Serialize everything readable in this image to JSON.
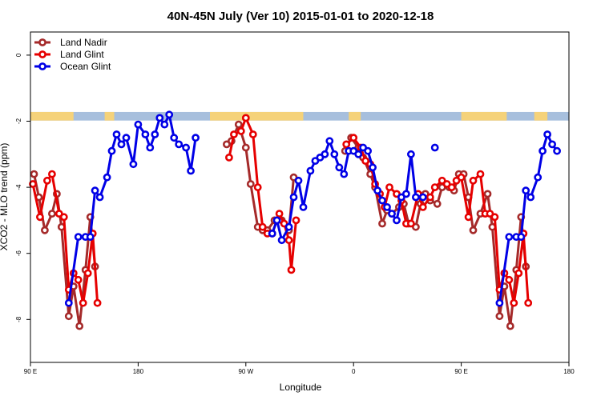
{
  "chart_data": {
    "type": "line",
    "title": "40N-45N July (Ver 10)   2015-01-01 to 2020-12-18",
    "xlabel": "Longitude",
    "ylabel": "XCO2 - MLO trend (ppm)",
    "x_tick_labels": [
      "90 E",
      "180",
      "90 W",
      "0",
      "90 E",
      "180"
    ],
    "y_tick_labels": [
      "0",
      "-2",
      "-4",
      "-6",
      "-8"
    ],
    "y_ticks": [
      0,
      -2,
      -4,
      -6,
      -8
    ],
    "xlim": [
      90,
      540
    ],
    "ylim": [
      -9.3,
      0.7
    ],
    "grid": false,
    "legend_position": "top-left",
    "land_band": {
      "y_range": [
        -1.72,
        -1.98
      ],
      "land_color": "#f5d27a",
      "ocean_color": "#a7bfdd",
      "land_segments": [
        [
          90,
          126
        ],
        [
          152,
          160
        ],
        [
          240,
          318
        ],
        [
          356,
          366
        ],
        [
          450,
          488
        ],
        [
          511,
          522
        ]
      ]
    },
    "series": [
      {
        "name": "Land Nadir",
        "color": "#a52a2a",
        "points": [
          [
            93,
            -3.6
          ],
          [
            97,
            -4.3
          ],
          [
            102,
            -5.3
          ],
          [
            108,
            -4.8
          ],
          [
            112,
            -4.2
          ],
          [
            116,
            -5.2
          ],
          [
            122,
            -7.9
          ],
          [
            126,
            -7.0
          ],
          [
            131,
            -8.2
          ],
          [
            136,
            -6.5
          ],
          [
            140,
            -4.9
          ],
          [
            144,
            -6.4
          ],
          null,
          [
            254,
            -2.7
          ],
          [
            258,
            -2.6
          ],
          [
            264,
            -2.1
          ],
          [
            270,
            -2.8
          ],
          [
            274,
            -3.9
          ],
          [
            280,
            -5.2
          ],
          [
            284,
            -5.3
          ],
          [
            288,
            -5.3
          ],
          [
            294,
            -5.0
          ],
          [
            300,
            -5.0
          ],
          [
            306,
            -5.3
          ],
          [
            310,
            -3.7
          ],
          null,
          [
            353,
            -2.9
          ],
          [
            358,
            -2.5
          ],
          [
            364,
            -2.8
          ],
          [
            368,
            -3.1
          ],
          [
            374,
            -3.6
          ],
          [
            378,
            -4.0
          ],
          [
            384,
            -5.1
          ],
          [
            388,
            -4.7
          ],
          [
            392,
            -4.8
          ],
          [
            398,
            -4.6
          ],
          [
            402,
            -4.5
          ],
          [
            406,
            -5.1
          ],
          [
            412,
            -5.2
          ],
          [
            416,
            -4.5
          ],
          [
            420,
            -4.2
          ],
          [
            424,
            -4.4
          ],
          [
            430,
            -4.5
          ],
          [
            434,
            -4.0
          ],
          [
            440,
            -4.0
          ],
          [
            444,
            -4.1
          ],
          [
            448,
            -3.6
          ],
          [
            452,
            -3.6
          ],
          [
            456,
            -4.3
          ],
          [
            460,
            -5.3
          ],
          [
            466,
            -4.8
          ],
          [
            472,
            -4.2
          ],
          [
            476,
            -5.2
          ],
          [
            482,
            -7.9
          ],
          [
            486,
            -7.0
          ],
          [
            491,
            -8.2
          ],
          [
            496,
            -6.5
          ],
          [
            500,
            -4.9
          ],
          [
            504,
            -6.4
          ]
        ]
      },
      {
        "name": "Land Glint",
        "color": "#e60000",
        "points": [
          [
            92,
            -3.9
          ],
          [
            98,
            -4.9
          ],
          [
            104,
            -3.8
          ],
          [
            108,
            -3.6
          ],
          [
            114,
            -4.8
          ],
          [
            118,
            -4.9
          ],
          [
            122,
            -7.1
          ],
          [
            126,
            -6.6
          ],
          [
            130,
            -6.8
          ],
          [
            134,
            -7.5
          ],
          [
            138,
            -6.6
          ],
          [
            142,
            -5.4
          ],
          [
            146,
            -7.5
          ],
          null,
          [
            256,
            -3.1
          ],
          [
            260,
            -2.4
          ],
          [
            266,
            -2.3
          ],
          [
            270,
            -1.9
          ],
          [
            276,
            -2.4
          ],
          [
            280,
            -4.0
          ],
          [
            284,
            -5.2
          ],
          [
            288,
            -5.4
          ],
          [
            292,
            -5.4
          ],
          [
            298,
            -4.8
          ],
          [
            302,
            -5.1
          ],
          [
            306,
            -5.6
          ],
          [
            308,
            -6.5
          ],
          [
            312,
            -5.0
          ],
          null,
          [
            354,
            -2.7
          ],
          [
            360,
            -2.5
          ],
          [
            366,
            -2.8
          ],
          [
            370,
            -3.2
          ],
          [
            374,
            -3.3
          ],
          [
            378,
            -3.9
          ],
          [
            382,
            -4.2
          ],
          [
            386,
            -4.6
          ],
          [
            390,
            -4.0
          ],
          [
            396,
            -4.2
          ],
          [
            400,
            -4.4
          ],
          [
            404,
            -5.1
          ],
          [
            408,
            -5.1
          ],
          [
            414,
            -4.2
          ],
          [
            418,
            -4.6
          ],
          [
            424,
            -4.3
          ],
          [
            428,
            -4.0
          ],
          [
            434,
            -3.8
          ],
          [
            438,
            -3.9
          ],
          [
            442,
            -4.0
          ],
          [
            446,
            -3.8
          ],
          [
            450,
            -3.7
          ],
          [
            456,
            -4.9
          ],
          [
            460,
            -3.8
          ],
          [
            466,
            -3.6
          ],
          [
            470,
            -4.8
          ],
          [
            474,
            -4.8
          ],
          [
            478,
            -4.9
          ],
          [
            482,
            -7.1
          ],
          [
            486,
            -6.6
          ],
          [
            490,
            -6.8
          ],
          [
            494,
            -7.5
          ],
          [
            498,
            -6.6
          ],
          [
            502,
            -5.4
          ],
          [
            506,
            -7.5
          ]
        ]
      },
      {
        "name": "Ocean Glint",
        "color": "#0000e6",
        "points": [
          [
            122,
            -7.5
          ],
          [
            130,
            -5.5
          ],
          [
            136,
            -5.5
          ],
          [
            140,
            -5.5
          ],
          [
            144,
            -4.1
          ],
          [
            148,
            -4.3
          ],
          [
            154,
            -3.7
          ],
          [
            158,
            -2.9
          ],
          [
            162,
            -2.4
          ],
          [
            166,
            -2.7
          ],
          [
            170,
            -2.5
          ],
          [
            176,
            -3.3
          ],
          [
            180,
            -2.1
          ],
          [
            186,
            -2.4
          ],
          [
            190,
            -2.8
          ],
          [
            194,
            -2.4
          ],
          [
            198,
            -1.9
          ],
          [
            202,
            -2.1
          ],
          [
            206,
            -1.8
          ],
          [
            210,
            -2.5
          ],
          [
            214,
            -2.7
          ],
          [
            220,
            -2.8
          ],
          [
            224,
            -3.5
          ],
          [
            228,
            -2.5
          ],
          null,
          [
            292,
            -5.4
          ],
          [
            296,
            -5.0
          ],
          [
            300,
            -5.6
          ],
          [
            306,
            -5.2
          ],
          [
            310,
            -4.3
          ],
          [
            314,
            -3.8
          ],
          [
            318,
            -4.6
          ],
          [
            324,
            -3.5
          ],
          [
            328,
            -3.2
          ],
          [
            332,
            -3.1
          ],
          [
            336,
            -3.0
          ],
          [
            340,
            -2.6
          ],
          [
            344,
            -3.0
          ],
          [
            348,
            -3.4
          ],
          [
            352,
            -3.6
          ],
          [
            356,
            -2.9
          ],
          [
            360,
            -2.9
          ],
          [
            364,
            -3.0
          ],
          [
            368,
            -2.8
          ],
          [
            372,
            -2.9
          ],
          [
            376,
            -3.4
          ],
          [
            380,
            -4.1
          ],
          [
            384,
            -4.4
          ],
          [
            388,
            -4.6
          ],
          [
            392,
            -4.8
          ],
          [
            396,
            -5.0
          ],
          [
            400,
            -4.3
          ],
          [
            404,
            -4.2
          ],
          [
            408,
            -3.0
          ],
          [
            412,
            -4.3
          ],
          [
            418,
            -4.3
          ],
          null,
          [
            428,
            -2.8
          ],
          null,
          [
            482,
            -7.5
          ],
          [
            490,
            -5.5
          ],
          [
            496,
            -5.5
          ],
          [
            500,
            -5.5
          ],
          [
            504,
            -4.1
          ],
          [
            508,
            -4.3
          ],
          [
            514,
            -3.7
          ],
          [
            518,
            -2.9
          ],
          [
            522,
            -2.4
          ],
          [
            526,
            -2.7
          ],
          [
            530,
            -2.9
          ]
        ]
      }
    ]
  }
}
